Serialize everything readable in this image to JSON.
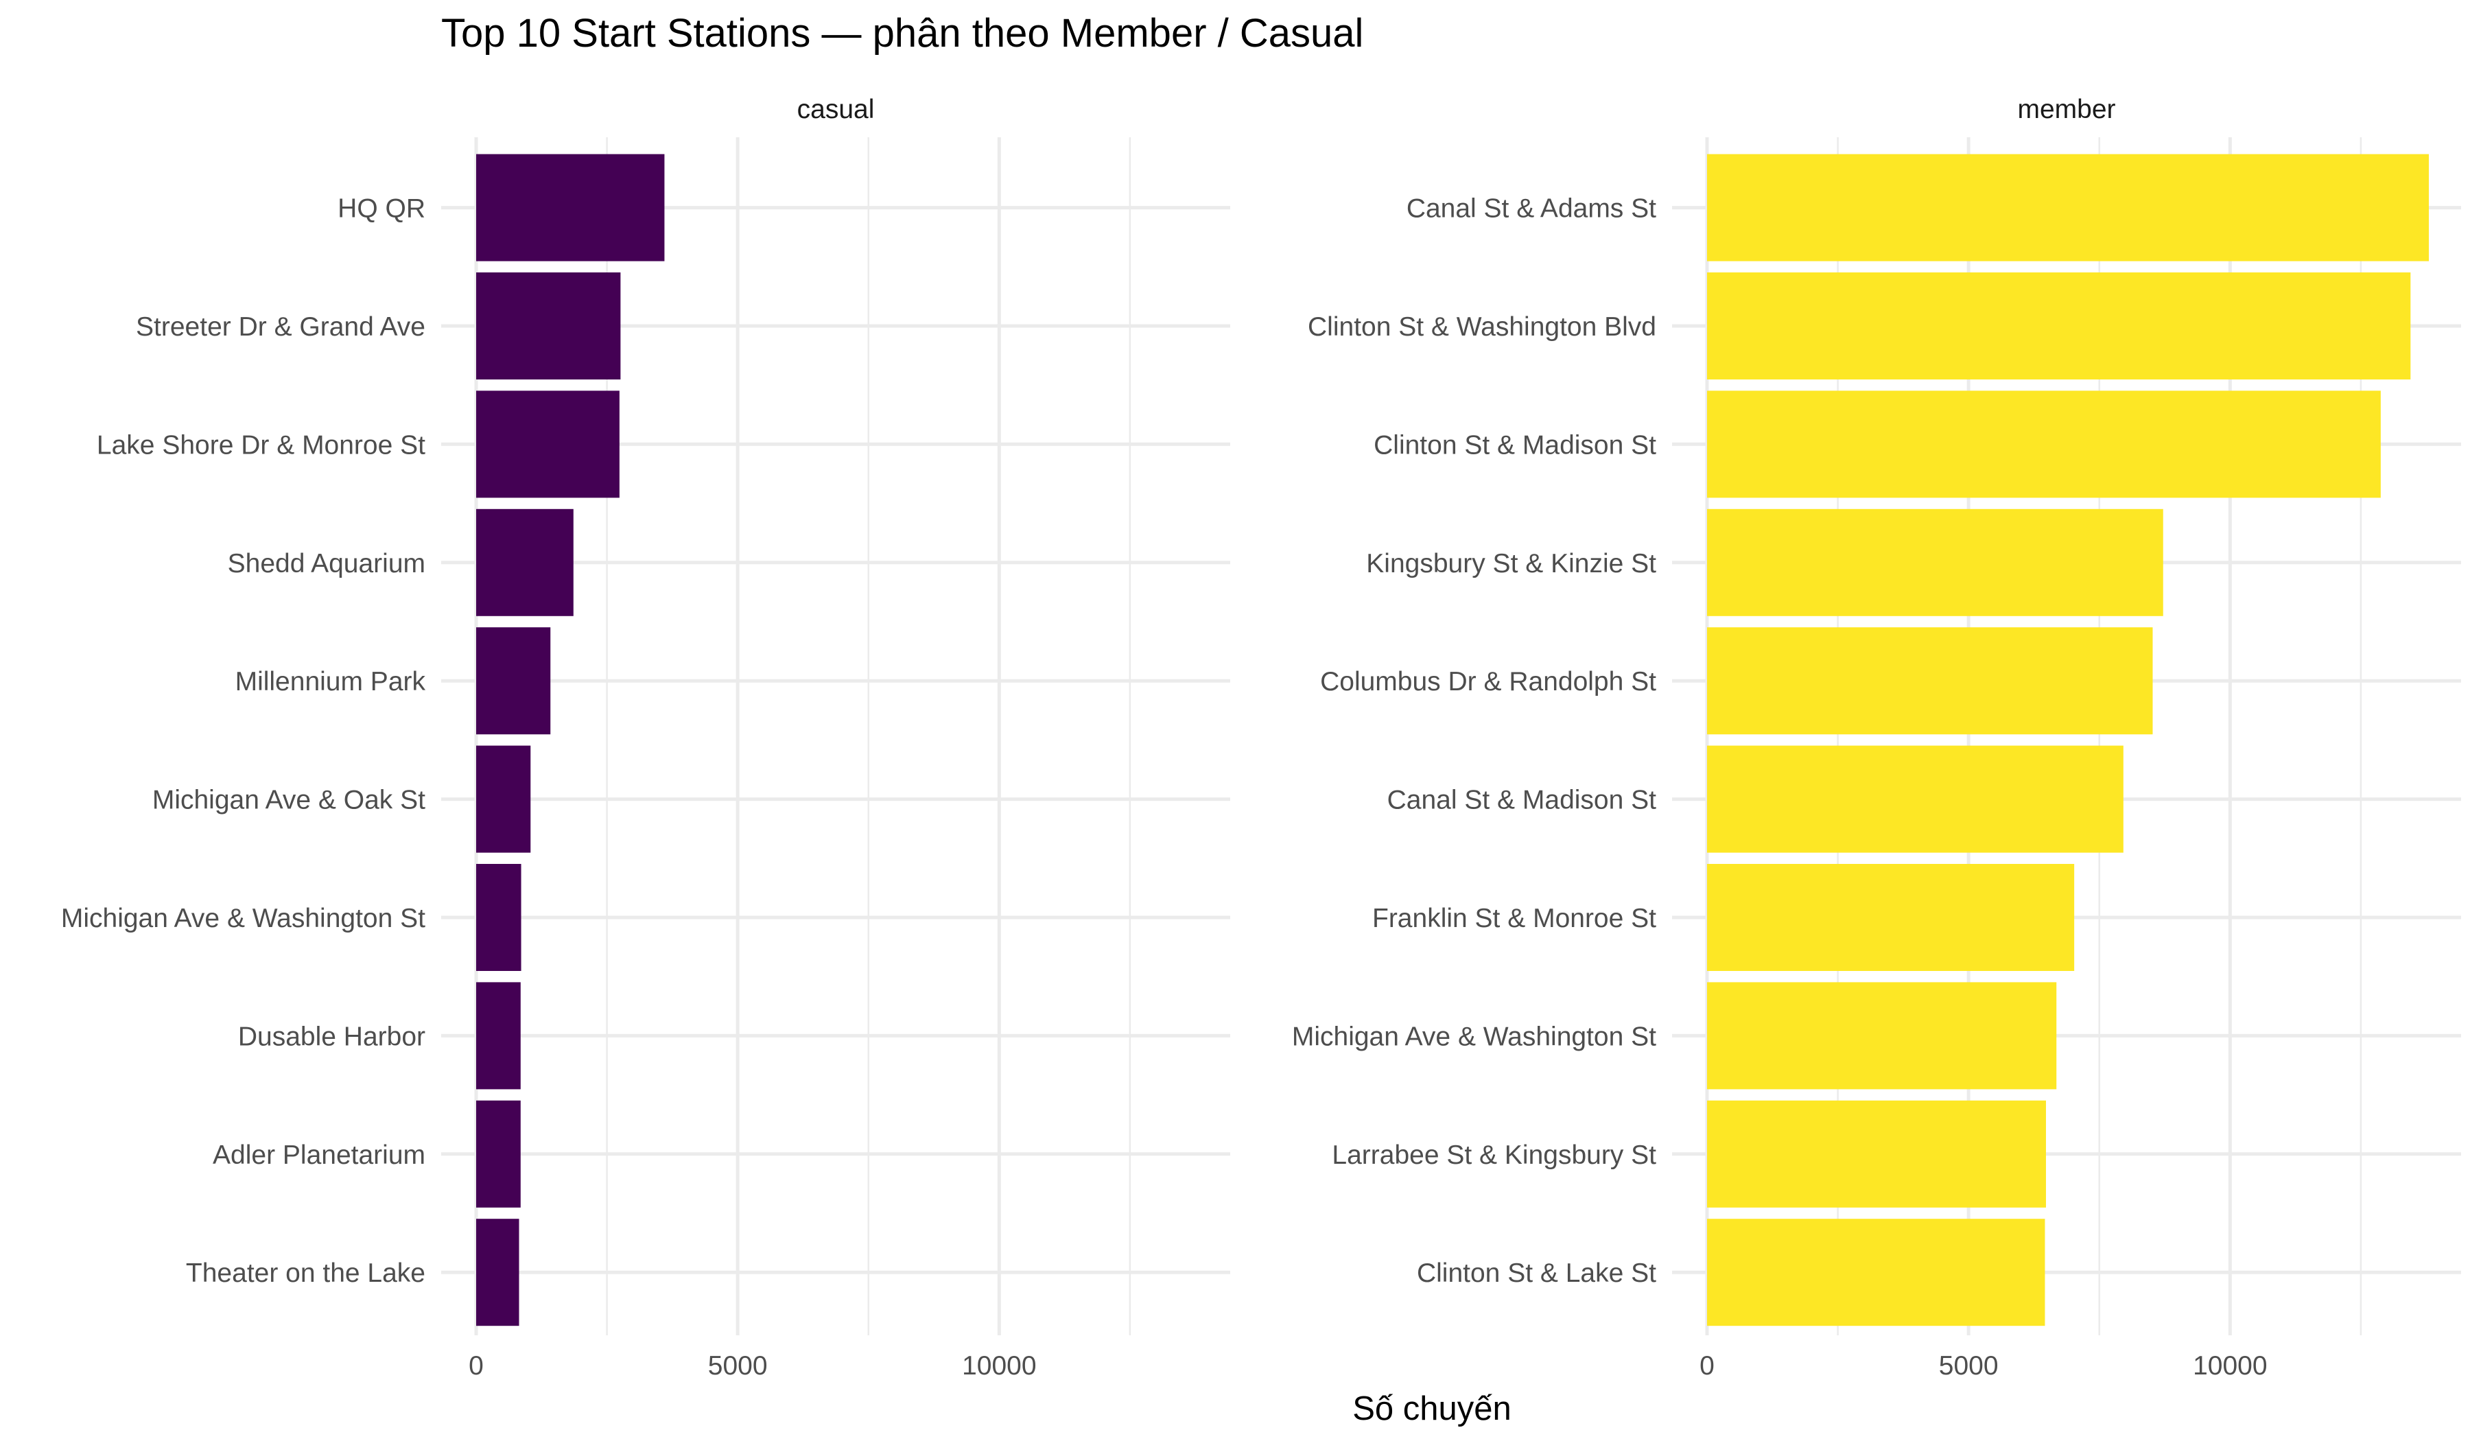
{
  "chart_data": {
    "type": "bar",
    "orientation": "horizontal",
    "title": "Top 10 Start Stations — phân theo Member / Casual",
    "xlabel": "Số chuyến",
    "ylabel": "",
    "xlim": [
      0,
      13800
    ],
    "x_ticks": [
      "0",
      "5000",
      "10000"
    ],
    "grid": true,
    "legend": "none",
    "panels": [
      {
        "name": "casual",
        "color": "#440154",
        "categories": [
          "HQ QR",
          "Streeter Dr & Grand Ave",
          "Lake Shore Dr & Monroe St",
          "Shedd Aquarium",
          "Millennium Park",
          "Michigan Ave & Oak St",
          "Michigan Ave & Washington St",
          "Dusable Harbor",
          "Adler Planetarium",
          "Theater on the Lake"
        ],
        "values": [
          3600,
          2760,
          2740,
          1860,
          1420,
          1040,
          860,
          850,
          850,
          820
        ]
      },
      {
        "name": "member",
        "color": "#FDE725",
        "categories": [
          "Canal St & Adams St",
          "Clinton St & Washington Blvd",
          "Clinton St & Madison St",
          "Kingsbury St & Kinzie St",
          "Columbus Dr & Randolph St",
          "Canal St & Madison St",
          "Franklin St & Monroe St",
          "Michigan Ave & Washington St",
          "Larrabee St & Kingsbury St",
          "Clinton St & Lake St"
        ],
        "values": [
          13800,
          13450,
          12880,
          8720,
          8520,
          7960,
          7020,
          6680,
          6480,
          6460
        ]
      }
    ]
  }
}
